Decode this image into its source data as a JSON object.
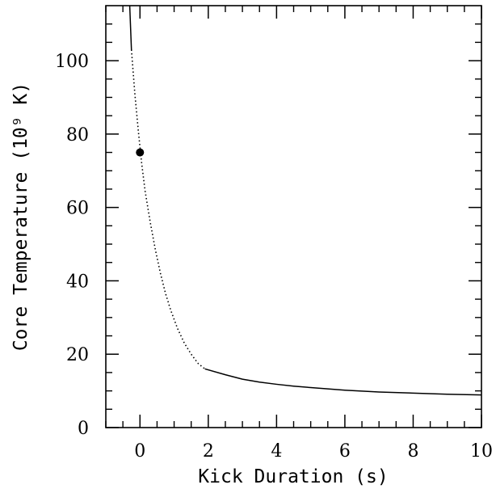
{
  "chart_data": {
    "type": "line",
    "xlabel": "Kick Duration (s)",
    "ylabel": "Core Temperature (10⁹ K)",
    "xlim": [
      -1,
      10
    ],
    "ylim": [
      0,
      115
    ],
    "grid": false,
    "x_ticks_major": [
      0,
      2,
      4,
      6,
      8,
      10
    ],
    "x_ticks_minor": [
      -1,
      -0.5,
      0.5,
      1,
      1.5,
      2.5,
      3,
      3.5,
      4.5,
      5,
      5.5,
      6.5,
      7,
      7.5,
      8.5,
      9,
      9.5
    ],
    "y_ticks_major": [
      0,
      20,
      40,
      60,
      80,
      100
    ],
    "y_ticks_minor": [
      5,
      10,
      15,
      25,
      30,
      35,
      45,
      50,
      55,
      65,
      70,
      75,
      85,
      90,
      95,
      105,
      110
    ],
    "series": [
      {
        "style": "solid",
        "points": [
          [
            -0.3,
            115
          ],
          [
            -0.25,
            103
          ]
        ]
      },
      {
        "style": "dotted",
        "points": [
          [
            -0.25,
            103
          ],
          [
            -0.15,
            91
          ],
          [
            -0.05,
            81
          ],
          [
            0.05,
            72
          ],
          [
            0.15,
            64.5
          ],
          [
            0.3,
            56
          ],
          [
            0.45,
            48.5
          ],
          [
            0.6,
            42
          ],
          [
            0.75,
            36.5
          ],
          [
            0.9,
            32
          ],
          [
            1.1,
            27
          ],
          [
            1.3,
            23
          ],
          [
            1.5,
            20
          ],
          [
            1.7,
            17.5
          ],
          [
            1.9,
            16
          ]
        ]
      },
      {
        "style": "solid",
        "points": [
          [
            1.9,
            16
          ],
          [
            2.5,
            14.4
          ],
          [
            3,
            13.2
          ],
          [
            3.5,
            12.4
          ],
          [
            4,
            11.8
          ],
          [
            4.5,
            11.3
          ],
          [
            5,
            10.9
          ],
          [
            6,
            10.2
          ],
          [
            7,
            9.7
          ],
          [
            8,
            9.4
          ],
          [
            9,
            9.1
          ],
          [
            10,
            8.9
          ]
        ]
      }
    ],
    "marker": {
      "x": 0,
      "y": 75
    }
  }
}
